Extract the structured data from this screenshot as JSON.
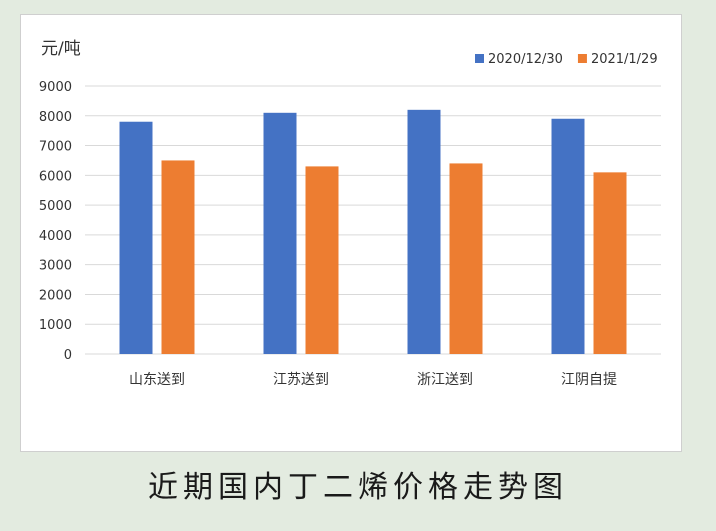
{
  "chart_data": {
    "type": "bar",
    "title": "近期国内丁二烯价格走势图",
    "ylabel": "元/吨",
    "xlabel": "",
    "categories": [
      "山东送到",
      "江苏送到",
      "浙江送到",
      "江阴自提"
    ],
    "series": [
      {
        "name": "2020/12/30",
        "color": "#4472c4",
        "values": [
          7800,
          8100,
          8200,
          7900
        ]
      },
      {
        "name": "2021/1/29",
        "color": "#ed7d31",
        "values": [
          6500,
          6300,
          6400,
          6100
        ]
      }
    ],
    "ylim": [
      0,
      9000
    ],
    "yticks": [
      0,
      1000,
      2000,
      3000,
      4000,
      5000,
      6000,
      7000,
      8000,
      9000
    ],
    "grid": true,
    "legend_position": "top-right"
  }
}
